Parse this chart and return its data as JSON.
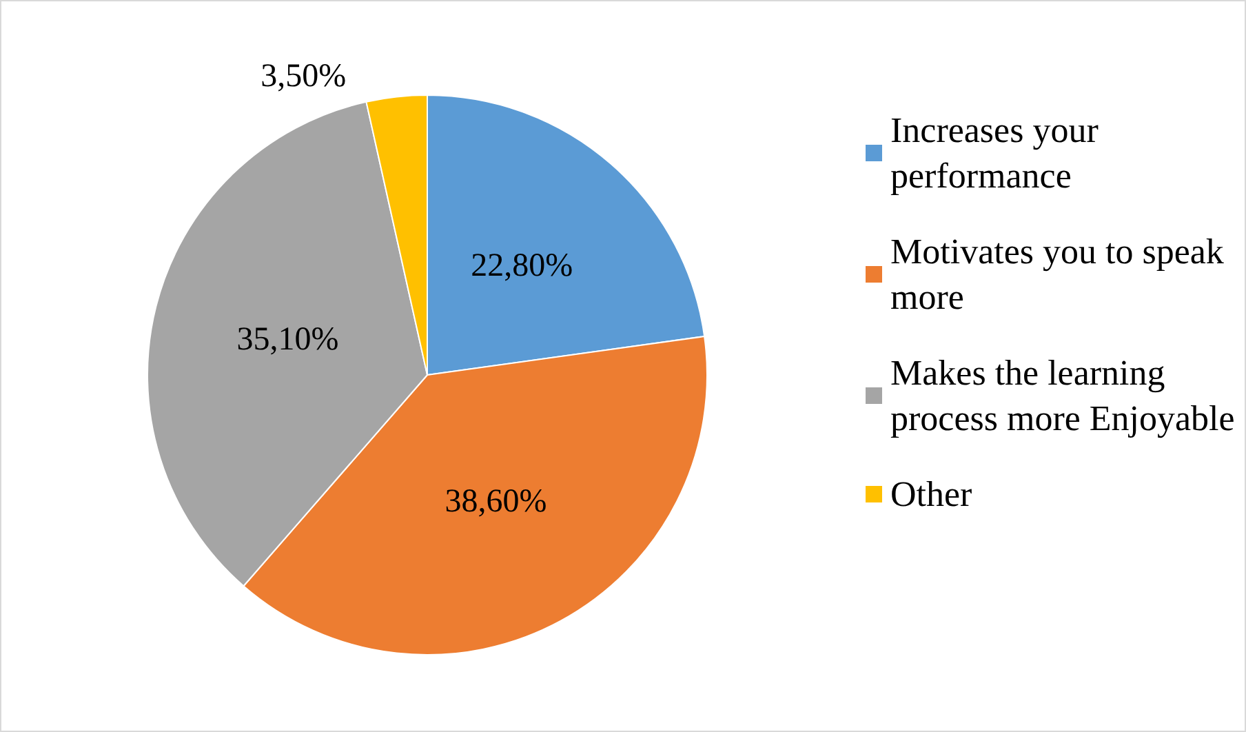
{
  "chart_data": {
    "type": "pie",
    "categories": [
      "Increases your performance",
      "Motivates you to speak more",
      "Makes the learning process more Enjoyable",
      "Other"
    ],
    "values": [
      22.8,
      38.6,
      35.1,
      3.5
    ],
    "value_labels": [
      "22,80%",
      "38,60%",
      "35,10%",
      "3,50%"
    ],
    "colors": [
      "#5b9bd5",
      "#ed7d31",
      "#a5a5a5",
      "#ffc000"
    ],
    "legend": "right"
  }
}
